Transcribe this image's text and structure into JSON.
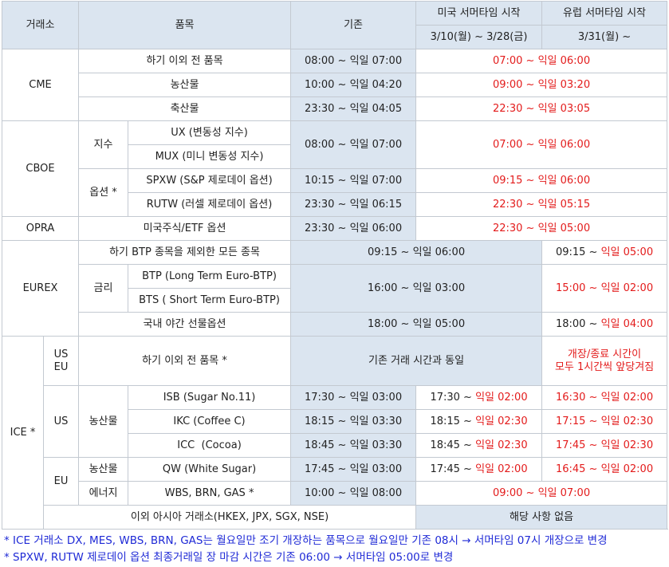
{
  "header": {
    "exchange": "거래소",
    "product": "품목",
    "current": "기존",
    "us_dst": "미국 서머타임 시작",
    "eu_dst": "유럽 서머타임 시작",
    "us_period": "3/10(월) ~ 3/28(금)",
    "eu_period": "3/31(월) ~"
  },
  "cme": {
    "name": "CME",
    "rows": [
      {
        "product": "하기 이외 전 품목",
        "current": "08:00 ~ 익일 07:00",
        "dst": "07:00 ~ 익일 06:00"
      },
      {
        "product": "농산물",
        "current": "10:00 ~ 익일 04:20",
        "dst": "09:00 ~ 익일 03:20"
      },
      {
        "product": "축산물",
        "current": "23:30 ~ 익일 04:05",
        "dst": "22:30 ~ 익일 03:05"
      }
    ]
  },
  "cboe": {
    "name": "CBOE",
    "index_group": "지수",
    "option_group": "옵션 *",
    "ux": "UX (변동성 지수)",
    "mux": "MUX (미니 변동성 지수)",
    "index_current": "08:00 ~ 익일 07:00",
    "index_dst": "07:00 ~ 익일 06:00",
    "spxw": "SPXW (S&P 제로데이 옵션)",
    "spxw_current": "10:15 ~ 익일 07:00",
    "spxw_dst": "09:15 ~ 익일 06:00",
    "rutw": "RUTW (러셀 제로데이 옵션)",
    "rutw_current": "23:30 ~ 익일 06:15",
    "rutw_dst": "22:30 ~ 익일 05:15"
  },
  "opra": {
    "name": "OPRA",
    "product": "미국주식/ETF 옵션",
    "current": "23:30 ~ 익일 06:00",
    "dst": "22:30 ~ 익일 05:00"
  },
  "eurex": {
    "name": "EUREX",
    "row1_product": "하기 BTP 종목을 제외한 모든 종목",
    "row1_current": "09:15 ~ 익일 06:00",
    "row1_eu_prefix": "09:15 ~ ",
    "row1_eu_red": "익일 05:00",
    "rate_group": "금리",
    "btp_long": "BTP (Long Term Euro-BTP)",
    "btp_short": "BTS ( Short Term Euro-BTP)",
    "btp_current": "16:00 ~ 익일 03:00",
    "btp_eu": "15:00 ~ 익일 02:00",
    "night_product": "국내 야간 선물옵션",
    "night_current": "18:00 ~ 익일 05:00",
    "night_eu_prefix": "18:00 ~ ",
    "night_eu_red": "익일 04:00"
  },
  "ice": {
    "name": "ICE *",
    "useu_line1": "US",
    "useu_line2": "EU",
    "useu_product": "하기 이외 전 품목 *",
    "useu_current": "기존 거래 시간과 동일",
    "useu_eu_line1": "개장/종료 시간이",
    "useu_eu_line2": "모두 1시간씩 앞당겨짐",
    "us_region": "US",
    "us_group": "농산물",
    "eu_region": "EU",
    "eu_ag_group": "농산물",
    "eu_energy_group": "에너지",
    "isb": {
      "product": "ISB (Sugar No.11)",
      "current": "17:30 ~ 익일 03:00",
      "us_prefix": "17:30 ~ ",
      "us_red": "익일 02:00",
      "eu": "16:30 ~ 익일 02:00"
    },
    "ikc": {
      "product": "IKC (Coffee C)",
      "current": "18:15 ~ 익일 03:30",
      "us_prefix": "18:15 ~ ",
      "us_red": "익일 02:30",
      "eu": "17:15 ~ 익일 02:30"
    },
    "icc": {
      "product": "ICC  (Cocoa)",
      "current": "18:45 ~ 익일 03:30",
      "us_prefix": "18:45 ~ ",
      "us_red": "익일 02:30",
      "eu": "17:45 ~ 익일 02:30"
    },
    "qw": {
      "product": "QW (White Sugar)",
      "current": "17:45 ~ 익일 03:00",
      "us_prefix": "17:45 ~ ",
      "us_red": "익일 02:00",
      "eu": "16:45 ~ 익일 02:00"
    },
    "energy": {
      "product": "WBS, BRN, GAS *",
      "current": "10:00 ~ 익일 08:00",
      "dst": "09:00 ~ 익일 07:00"
    }
  },
  "other": {
    "name": "이외 아시아 거래소(HKEX, JPX, SGX, NSE)",
    "value": "해당 사항 없음"
  },
  "notes": [
    "* ICE 거래소 DX, MES, WBS, BRN, GAS는 월요일만 조기 개장하는 품목으로 월요일만 기존 08시 → 서머타임 07시 개장으로 변경",
    "* SPXW, RUTW 제로데이 옵션 최종거래일 장 마감 시간은 기존 06:00 → 서머타임 05:00로 변경"
  ],
  "colors": {
    "header_bg": "#dbe5f0",
    "red": "#e31b1b",
    "note_blue": "#1f2ad6",
    "border": "#c3c9d1"
  }
}
